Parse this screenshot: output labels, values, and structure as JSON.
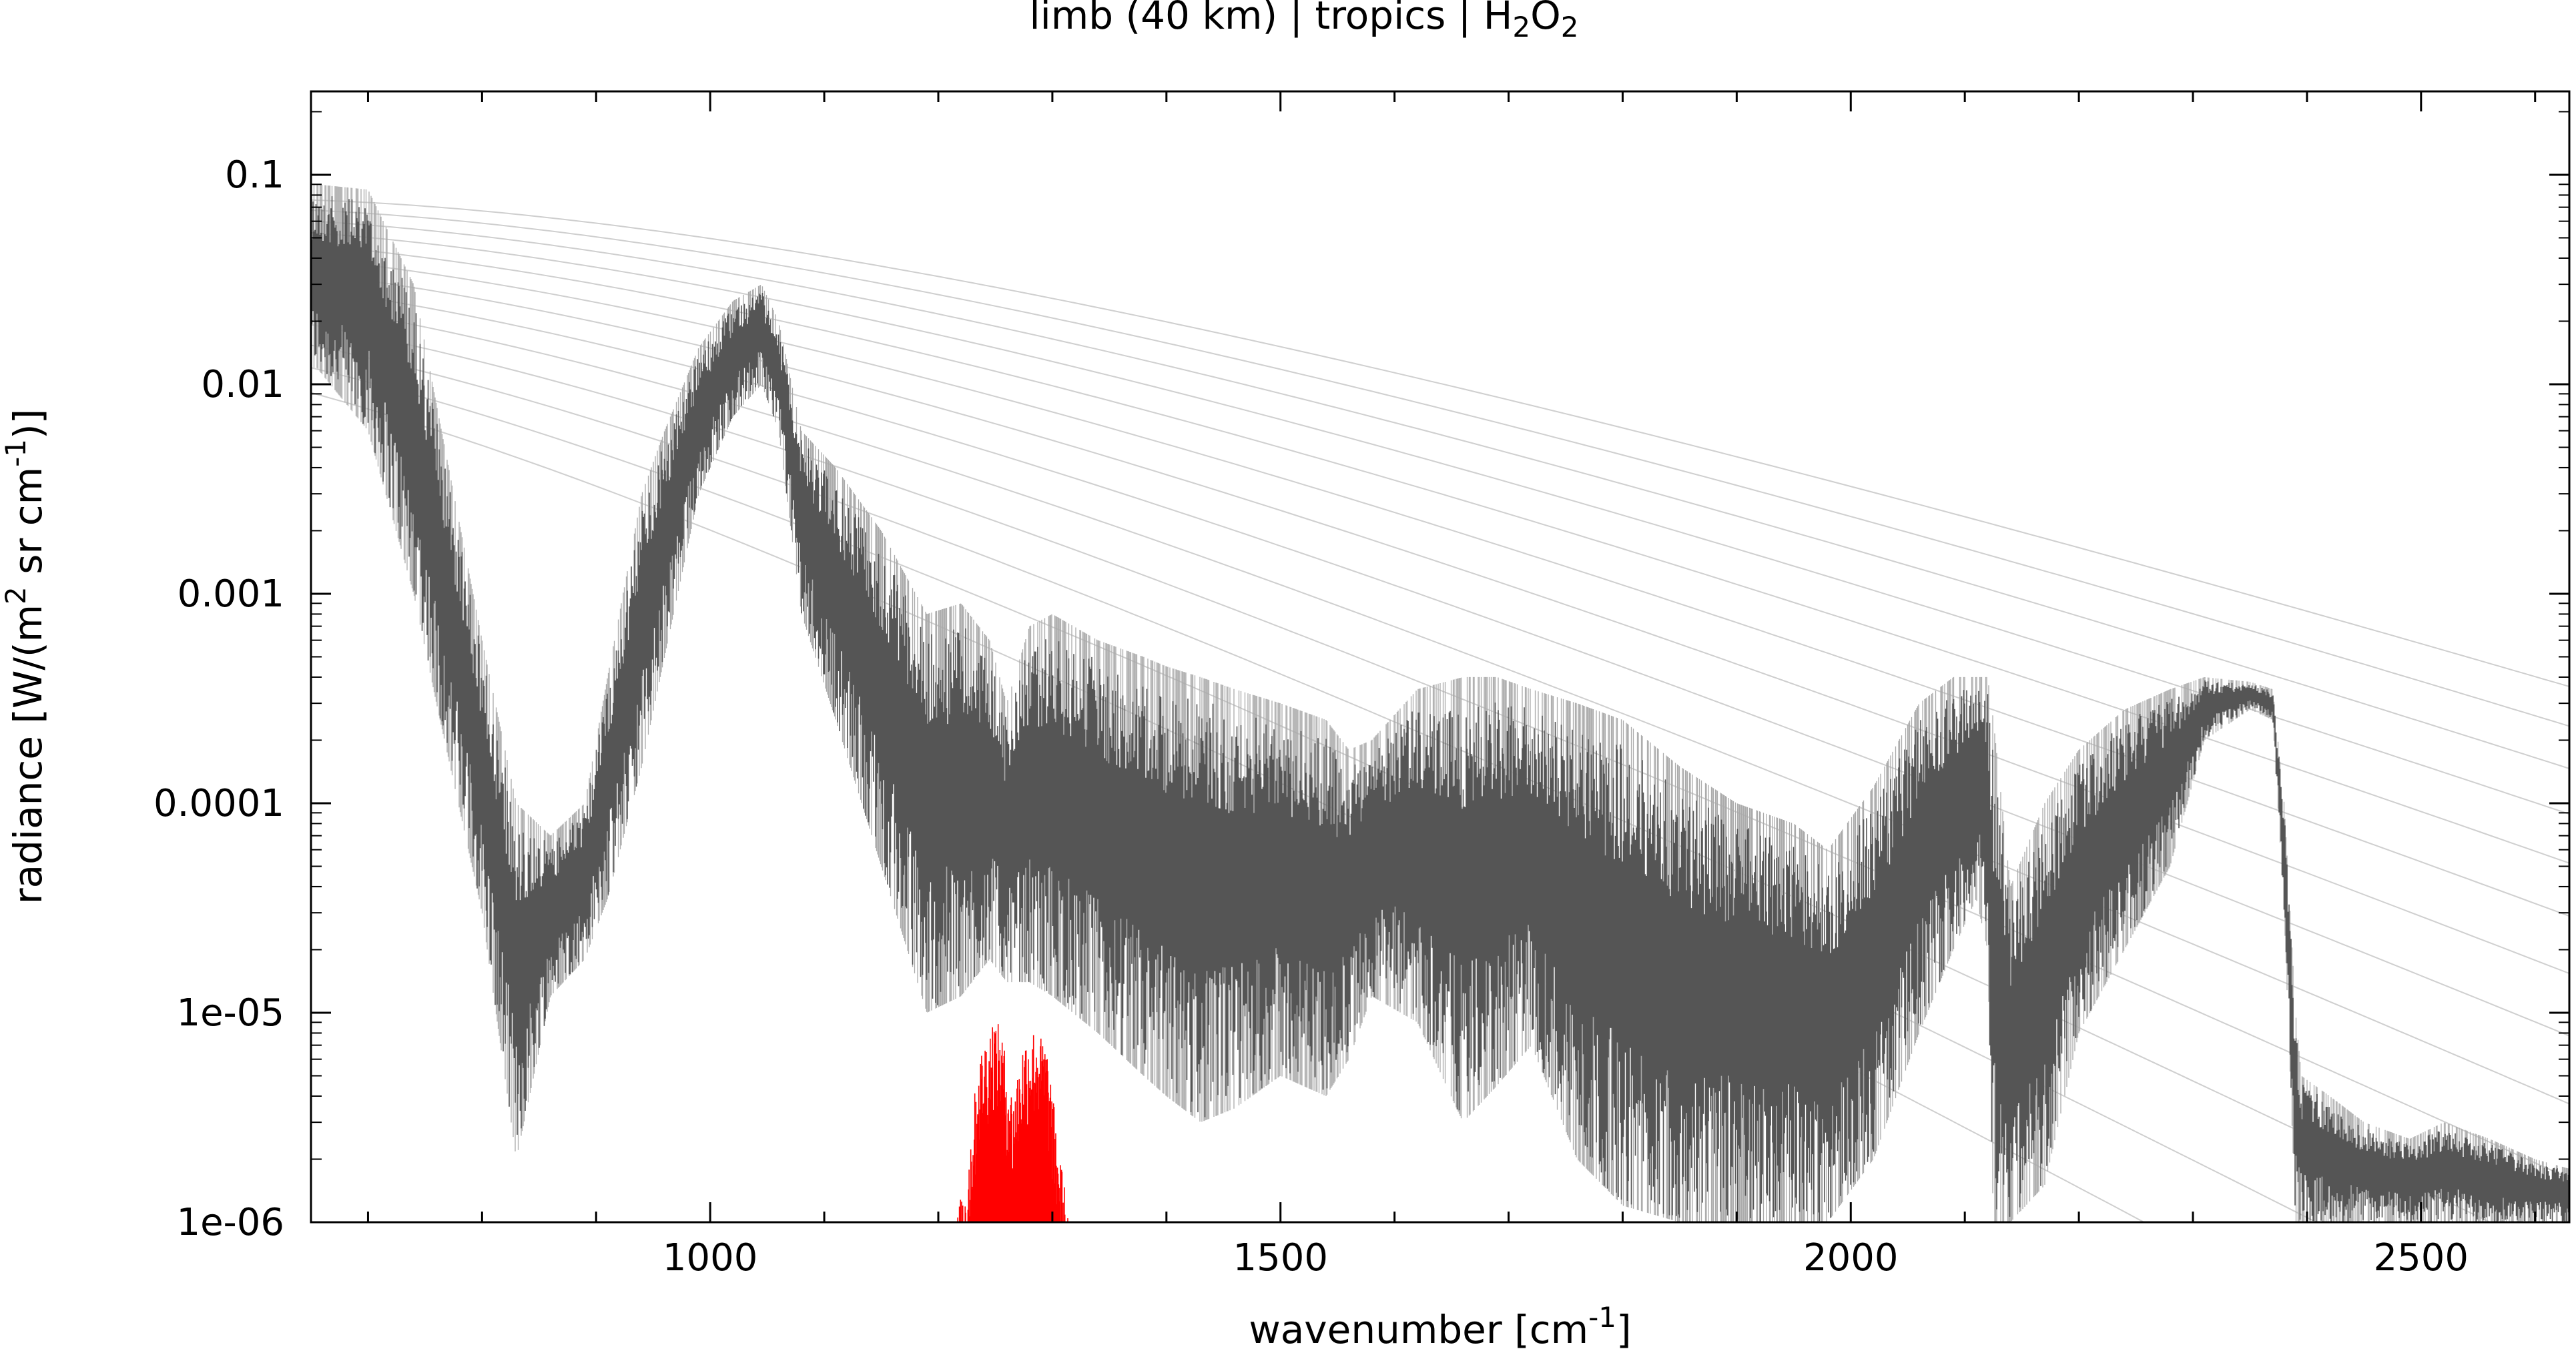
{
  "chart_data": {
    "type": "line",
    "title": "limb (40 km) | tropics | H2O2",
    "title_parts": {
      "prefix": "limb (40 km) | tropics | H",
      "sub1": "2",
      "mid": "O",
      "sub2": "2"
    },
    "xlabel": "wavenumber [cm-1]",
    "xlabel_parts": {
      "text": "wavenumber [cm",
      "sup": "-1",
      "close": "]"
    },
    "ylabel": "radiance [W/(m2 sr cm-1)]",
    "ylabel_parts": {
      "a": "radiance [W/(m",
      "sup1": "2",
      "b": " sr cm",
      "sup2": "-1",
      "c": ")]"
    },
    "xlim": [
      650,
      2630
    ],
    "ylim": [
      1e-06,
      0.25
    ],
    "yscale": "log",
    "grid": false,
    "xticks": [
      1000,
      1500,
      2000,
      2500
    ],
    "xtick_labels": [
      "1000",
      "1500",
      "2000",
      "2500"
    ],
    "yticks": [
      1e-06,
      1e-05,
      0.0001,
      0.001,
      0.01,
      0.1
    ],
    "ytick_labels": [
      "1e-06",
      "1e-05",
      "0.0001",
      "0.001",
      "0.01",
      "0.1"
    ],
    "colors": {
      "total": "#555555",
      "total_light": "#aaaaaa",
      "species": "#ff0000",
      "planck": "#cfcfcf"
    },
    "series": [
      {
        "role": "total-radiance",
        "x": [
          655,
          700,
          740,
          760,
          800,
          830,
          860,
          890,
          910,
          940,
          960,
          990,
          1020,
          1045,
          1060,
          1080,
          1110,
          1150,
          1190,
          1220,
          1245,
          1260,
          1280,
          1300,
          1340,
          1380,
          1400,
          1430,
          1460,
          1500,
          1540,
          1560,
          1580,
          1620,
          1660,
          1690,
          1720,
          1760,
          1800,
          1850,
          1900,
          1950,
          1980,
          2020,
          2060,
          2090,
          2110,
          2120,
          2125,
          2140,
          2170,
          2200,
          2240,
          2280,
          2310,
          2350,
          2370,
          2380,
          2390,
          2395,
          2420,
          2450,
          2490,
          2520,
          2560,
          2600,
          2630
        ],
        "y_high": [
          0.09,
          0.085,
          0.03,
          0.008,
          0.0006,
          0.0001,
          7e-05,
          0.0001,
          0.0004,
          0.003,
          0.006,
          0.015,
          0.025,
          0.03,
          0.02,
          0.006,
          0.004,
          0.002,
          0.0008,
          0.0009,
          0.0006,
          0.0003,
          0.0007,
          0.0008,
          0.0006,
          0.0005,
          0.00045,
          0.0004,
          0.00035,
          0.0003,
          0.00025,
          0.00018,
          0.0002,
          0.00035,
          0.0004,
          0.0004,
          0.00035,
          0.0003,
          0.00025,
          0.00015,
          0.0001,
          8e-05,
          6e-05,
          0.00012,
          0.0003,
          0.0004,
          0.0004,
          0.0004,
          0.00025,
          4e-05,
          0.0001,
          0.00018,
          0.00028,
          0.00035,
          0.0004,
          0.00038,
          0.00035,
          0.0001,
          1e-05,
          5e-06,
          4e-06,
          3e-06,
          2.5e-06,
          3e-06,
          2.5e-06,
          2e-06,
          1.8e-06
        ],
        "y_low": [
          0.012,
          0.006,
          0.001,
          0.0003,
          3e-05,
          2e-06,
          1.2e-05,
          1.8e-05,
          3.5e-05,
          0.00015,
          0.0005,
          0.003,
          0.007,
          0.01,
          0.006,
          0.0008,
          0.00025,
          5e-05,
          1e-05,
          1.2e-05,
          1.8e-05,
          1.4e-05,
          1.4e-05,
          1.2e-05,
          8e-06,
          5e-06,
          4e-06,
          3e-06,
          3.5e-06,
          5e-06,
          4e-06,
          6e-06,
          1.2e-05,
          9e-06,
          3e-06,
          4.5e-06,
          7e-06,
          2e-06,
          1.2e-06,
          1e-06,
          1e-06,
          1e-06,
          1e-06,
          2e-06,
          8e-06,
          2e-05,
          3.5e-05,
          2e-05,
          1e-06,
          1e-06,
          1.5e-06,
          8e-06,
          2e-05,
          5e-05,
          0.0002,
          0.00028,
          0.00025,
          3e-05,
          1e-06,
          1e-06,
          1e-06,
          1e-06,
          1e-06,
          1e-06,
          1e-06,
          1e-06,
          1e-06
        ]
      },
      {
        "role": "species-h2o2",
        "x": [
          1215,
          1225,
          1235,
          1248,
          1255,
          1265,
          1275,
          1285,
          1295,
          1305,
          1315
        ],
        "y_high": [
          1e-06,
          1.8e-06,
          6e-06,
          9.5e-06,
          8.5e-06,
          4e-06,
          7.5e-06,
          8.5e-06,
          7e-06,
          2.5e-06,
          1e-06
        ]
      }
    ],
    "planck_reference_curves": {
      "temperatures_K": [
        180,
        190,
        200,
        210,
        220,
        230,
        240,
        250,
        260,
        270,
        280,
        290,
        300
      ],
      "epsilon": 0.5
    }
  }
}
